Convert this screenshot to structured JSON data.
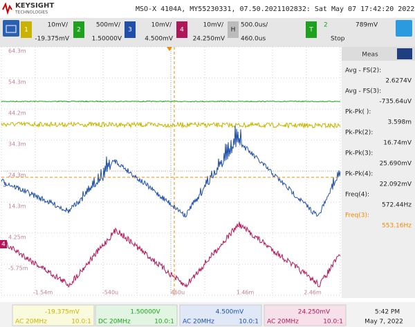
{
  "header": {
    "brand": "KEYSIGHT",
    "brand_sub": "TECHNOLOGIES",
    "title": "MSO-X 4104A, MY55230331, 07.50.2021102832: Sat May 07 17:42:20 2022"
  },
  "channels": [
    {
      "number": "1",
      "scale": "10mV/",
      "offset": "-19.375mV"
    },
    {
      "number": "2",
      "scale": "500mV/",
      "offset": "1.50000V"
    },
    {
      "number": "3",
      "scale": "10mV/",
      "offset": "4.500mV"
    },
    {
      "number": "4",
      "scale": "10mV/",
      "offset": "24.250mV"
    }
  ],
  "horizontal": {
    "label": "H",
    "scale": "500.0us/",
    "delay": "460.0us"
  },
  "trigger": {
    "label": "T",
    "source": "2",
    "level": "789mV",
    "status": "Stop"
  },
  "grid": {
    "y_labels": [
      "64.3m",
      "54.3m",
      "44.2m",
      "34.3m",
      "24.3m",
      "14.3m",
      "4.25m",
      "-5.75m"
    ],
    "x_labels": [
      "-1.54m",
      "-540u",
      "460u",
      "1.46m",
      "2.46m"
    ]
  },
  "measurements": {
    "title": "Meas",
    "items": [
      {
        "label": "Avg - FS(2):",
        "value": "2.6274V"
      },
      {
        "label": "Avg - FS(3):",
        "value": "-735.64uV"
      },
      {
        "label": "Pk-Pk( ):",
        "value": "3.598m"
      },
      {
        "label": "Pk-Pk(2):",
        "value": "16.74mV"
      },
      {
        "label": "Pk-Pk(3):",
        "value": "25.690mV"
      },
      {
        "label": "Pk-Pk(4):",
        "value": "22.092mV"
      },
      {
        "label": "Freq(4):",
        "value": "572.44Hz"
      },
      {
        "label": "Freq(3):",
        "value": "553.16Hz"
      }
    ]
  },
  "footer": {
    "channels": [
      {
        "offset": "-19.375mV",
        "coupling": "AC 20MHz",
        "probe": "10.0:1"
      },
      {
        "offset": "1.50000V",
        "coupling": "DC 20MHz",
        "probe": "10.0:1"
      },
      {
        "offset": "4.500mV",
        "coupling": "AC 20MHz",
        "probe": "10.0:1"
      },
      {
        "offset": "24.250mV",
        "coupling": "AC 20MHz",
        "probe": "10.0:1"
      }
    ],
    "time": "5:42 PM",
    "date": "May 7, 2022"
  }
}
